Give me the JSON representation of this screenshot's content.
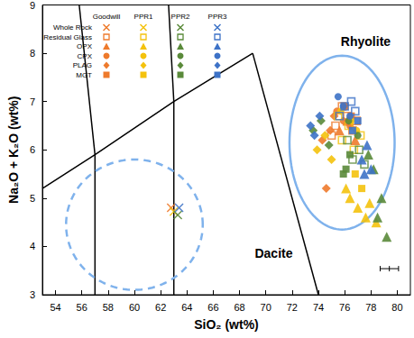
{
  "chart_data": {
    "type": "scatter",
    "x_label": "SiO₂ (wt%)",
    "y_label": "Na₂O + K₂O (wt%)",
    "xlim": [
      53,
      81
    ],
    "xticks": [
      54,
      56,
      58,
      60,
      62,
      64,
      66,
      68,
      70,
      72,
      74,
      76,
      78,
      80
    ],
    "ylim": [
      3,
      9
    ],
    "yticks": [
      3,
      4,
      5,
      6,
      7,
      8,
      9
    ],
    "grid": false,
    "legend": "upper left",
    "groups": [
      {
        "name": "Goodwill",
        "color": "#EE7A2C"
      },
      {
        "name": "PPR1",
        "color": "#F4C20D"
      },
      {
        "name": "PPR2",
        "color": "#5A8A3A"
      },
      {
        "name": "PPR3",
        "color": "#3D72C7"
      }
    ],
    "sample_types": [
      {
        "name": "Whole Rock",
        "marker": "x"
      },
      {
        "name": "Residual Glass",
        "marker": "square_open"
      },
      {
        "name": "OPX",
        "marker": "triangle"
      },
      {
        "name": "CPX",
        "marker": "circle"
      },
      {
        "name": "PLAG",
        "marker": "diamond"
      },
      {
        "name": "MGT",
        "marker": "square"
      }
    ],
    "series": [
      {
        "group": "Goodwill",
        "sample_type": "Whole Rock",
        "x": [
          62.8
        ],
        "y": [
          4.8
        ]
      },
      {
        "group": "Goodwill",
        "sample_type": "Residual Glass",
        "x": [
          75.3,
          75.8,
          76.2,
          76.6,
          75.0,
          76.9
        ],
        "y": [
          6.5,
          6.9,
          6.7,
          6.4,
          6.3,
          6.6
        ]
      },
      {
        "group": "Goodwill",
        "sample_type": "OPX",
        "x": [
          76.2,
          76.8,
          75.6
        ],
        "y": [
          6.6,
          6.2,
          6.4
        ]
      },
      {
        "group": "Goodwill",
        "sample_type": "CPX",
        "x": [
          75.4,
          75.9,
          76.4,
          76.0
        ],
        "y": [
          6.8,
          6.6,
          6.5,
          6.9
        ]
      },
      {
        "group": "Goodwill",
        "sample_type": "PLAG",
        "x": [
          74.6,
          74.9,
          75.2,
          74.3
        ],
        "y": [
          5.2,
          6.4,
          6.7,
          6.2
        ]
      },
      {
        "group": "Goodwill",
        "sample_type": "MGT",
        "x": [
          76.0,
          76.5
        ],
        "y": [
          6.9,
          6.7
        ]
      },
      {
        "group": "PPR1",
        "sample_type": "Whole Rock",
        "x": [
          63.0
        ],
        "y": [
          4.72
        ]
      },
      {
        "group": "PPR1",
        "sample_type": "Residual Glass",
        "x": [
          75.8,
          76.3,
          76.7,
          77.2,
          75.5
        ],
        "y": [
          6.2,
          6.5,
          6.0,
          6.3,
          6.7
        ]
      },
      {
        "group": "PPR1",
        "sample_type": "OPX",
        "x": [
          76.4,
          77.0,
          77.6,
          76.1,
          77.9,
          78.4
        ],
        "y": [
          5.0,
          4.8,
          4.6,
          5.2,
          4.9,
          4.5
        ]
      },
      {
        "group": "PPR1",
        "sample_type": "CPX",
        "x": [
          75.7,
          76.5,
          76.9
        ],
        "y": [
          6.8,
          6.6,
          6.4
        ]
      },
      {
        "group": "PPR1",
        "sample_type": "PLAG",
        "x": [
          73.9,
          74.5,
          75.0
        ],
        "y": [
          6.0,
          6.3,
          5.8
        ]
      },
      {
        "group": "PPR1",
        "sample_type": "MGT",
        "x": [
          76.8,
          77.3
        ],
        "y": [
          5.5,
          5.2
        ]
      },
      {
        "group": "PPR2",
        "sample_type": "Whole Rock",
        "x": [
          63.3
        ],
        "y": [
          4.65
        ]
      },
      {
        "group": "PPR2",
        "sample_type": "Residual Glass",
        "x": [
          76.6,
          77.1,
          77.5,
          76.2
        ],
        "y": [
          5.8,
          6.0,
          5.7,
          6.2
        ]
      },
      {
        "group": "PPR2",
        "sample_type": "OPX",
        "x": [
          78.2,
          78.8,
          79.2,
          78.5,
          77.8
        ],
        "y": [
          5.6,
          5.0,
          4.2,
          4.6,
          5.9
        ]
      },
      {
        "group": "PPR2",
        "sample_type": "CPX",
        "x": [
          76.3,
          77.0
        ],
        "y": [
          6.6,
          6.3
        ]
      },
      {
        "group": "PPR2",
        "sample_type": "PLAG",
        "x": [
          73.6,
          74.2,
          74.8
        ],
        "y": [
          6.4,
          6.6,
          6.1
        ]
      },
      {
        "group": "PPR2",
        "sample_type": "MGT",
        "x": [
          75.9,
          76.4,
          76.1
        ],
        "y": [
          5.5,
          5.9,
          5.6
        ]
      },
      {
        "group": "PPR3",
        "sample_type": "Whole Rock",
        "x": [
          63.4
        ],
        "y": [
          4.8
        ]
      },
      {
        "group": "PPR3",
        "sample_type": "Residual Glass",
        "x": [
          76.0,
          76.5,
          75.6,
          76.8
        ],
        "y": [
          6.9,
          7.0,
          6.7,
          6.8
        ]
      },
      {
        "group": "PPR3",
        "sample_type": "OPX",
        "x": [
          77.3,
          77.7,
          78.0,
          77.5
        ],
        "y": [
          5.8,
          6.1,
          5.6,
          5.5
        ]
      },
      {
        "group": "PPR3",
        "sample_type": "CPX",
        "x": [
          75.9,
          76.4,
          75.5
        ],
        "y": [
          6.9,
          6.7,
          7.1
        ]
      },
      {
        "group": "PPR3",
        "sample_type": "PLAG",
        "x": [
          73.4,
          73.7,
          74.1
        ],
        "y": [
          6.5,
          6.3,
          6.7
        ]
      },
      {
        "group": "PPR3",
        "sample_type": "MGT",
        "x": [
          76.6,
          77.0
        ],
        "y": [
          6.4,
          6.6
        ]
      }
    ],
    "boundaries": [
      [
        [
          53,
          5.2
        ],
        [
          57,
          5.9
        ],
        [
          63,
          7
        ],
        [
          69,
          8
        ]
      ],
      [
        [
          57,
          3
        ],
        [
          57,
          5.9
        ],
        [
          55.8,
          9
        ]
      ],
      [
        [
          63,
          3
        ],
        [
          63,
          7
        ],
        [
          62.6,
          9
        ]
      ],
      [
        [
          74,
          3
        ],
        [
          69,
          8
        ]
      ]
    ],
    "ellipses": [
      {
        "center": [
          60,
          4.45
        ],
        "rx": 5.2,
        "ry": 1.35,
        "color": "#7FB2EC",
        "line_style": "dashed"
      },
      {
        "center": [
          75.8,
          6.15
        ],
        "rx": 4.0,
        "ry": 1.8,
        "color": "#7FB2EC",
        "line_style": "solid"
      }
    ],
    "error_bars": [
      {
        "x": 79.4,
        "y": 3.54,
        "xerr": 0.7
      }
    ],
    "annotations": [
      {
        "text": "Rhyolite",
        "x": 77.6,
        "y": 8.25
      },
      {
        "text": "Dacite",
        "x": 70.6,
        "y": 3.85
      }
    ]
  }
}
